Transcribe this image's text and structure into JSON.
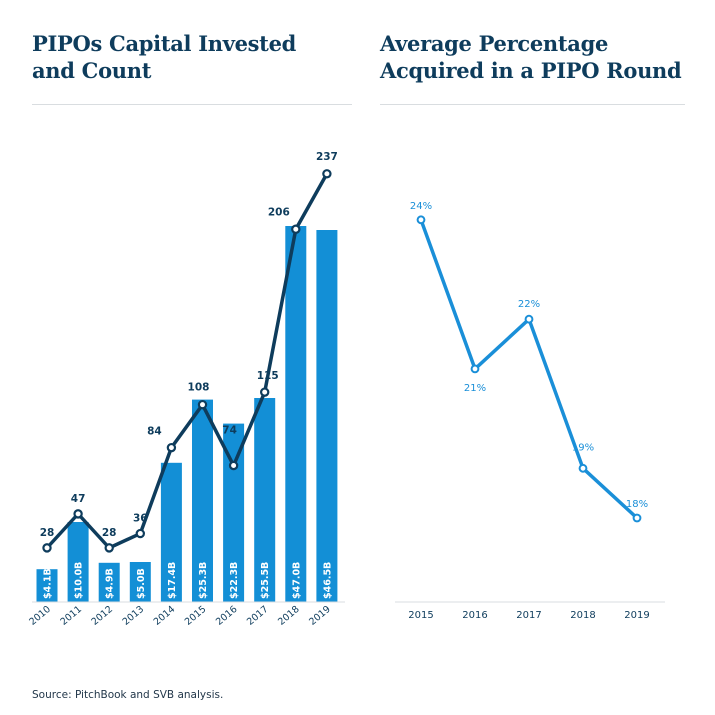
{
  "left": {
    "title_line1": "PIPOs Capital Invested",
    "title_line2": "and Count"
  },
  "right": {
    "title_line1": "Average Percentage",
    "title_line2": "Acquired in a PIPO Round"
  },
  "source": "Source: PitchBook and SVB analysis.",
  "colors": {
    "bar": "#138fd6",
    "line_dark": "#0e3c5c",
    "line_light": "#1a8fd8",
    "title": "#0e3c5c",
    "rule": "#d9dde0"
  },
  "chart_data": [
    {
      "type": "bar",
      "title": "PIPOs Capital Invested and Count",
      "categories": [
        "2010",
        "2011",
        "2012",
        "2013",
        "2014",
        "2015",
        "2016",
        "2017",
        "2018",
        "2019"
      ],
      "series": [
        {
          "name": "Capital Invested ($B)",
          "type": "bar",
          "values": [
            4.1,
            10.0,
            4.9,
            5.0,
            17.4,
            25.3,
            22.3,
            25.5,
            47.0,
            46.5
          ],
          "labels": [
            "$4.1B",
            "$10.0B",
            "$4.9B",
            "$5.0B",
            "$17.4B",
            "$25.3B",
            "$22.3B",
            "$25.5B",
            "$47.0B",
            "$46.5B"
          ]
        },
        {
          "name": "Count",
          "type": "line",
          "values": [
            28,
            47,
            28,
            36,
            84,
            108,
            74,
            115,
            206,
            237
          ]
        }
      ],
      "xlabel": "",
      "ylabel": ""
    },
    {
      "type": "line",
      "title": "Average Percentage Acquired in a PIPO Round",
      "categories": [
        "2015",
        "2016",
        "2017",
        "2018",
        "2019"
      ],
      "values": [
        24,
        21,
        22,
        19,
        18
      ],
      "labels": [
        "24%",
        "21%",
        "22%",
        "19%",
        "18%"
      ],
      "xlabel": "",
      "ylabel": ""
    }
  ]
}
